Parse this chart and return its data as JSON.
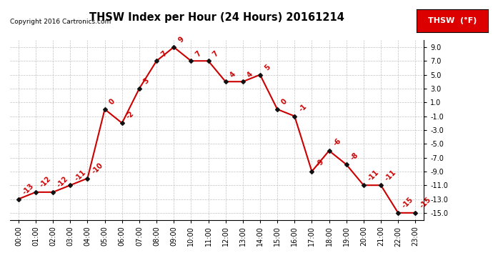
{
  "title": "THSW Index per Hour (24 Hours) 20161214",
  "copyright": "Copyright 2016 Cartronics.com",
  "legend_label": "THSW  (°F)",
  "x_labels": [
    "00:00",
    "01:00",
    "02:00",
    "03:00",
    "04:00",
    "05:00",
    "06:00",
    "07:00",
    "08:00",
    "09:00",
    "10:00",
    "11:00",
    "12:00",
    "13:00",
    "14:00",
    "15:00",
    "16:00",
    "17:00",
    "18:00",
    "19:00",
    "20:00",
    "21:00",
    "22:00",
    "23:00"
  ],
  "values": [
    -13,
    -12,
    -12,
    -11,
    -10,
    0,
    -2,
    3,
    7,
    9,
    7,
    7,
    4,
    4,
    5,
    0,
    -1,
    -9,
    -6,
    -8,
    -11,
    -11,
    -15,
    -15
  ],
  "ylim": [
    -16.0,
    10.0
  ],
  "yticks": [
    -15.0,
    -13.0,
    -11.0,
    -9.0,
    -7.0,
    -5.0,
    -3.0,
    -1.0,
    1.0,
    3.0,
    5.0,
    7.0,
    9.0
  ],
  "line_color": "#cc0000",
  "marker_color": "#111111",
  "label_color": "#cc0000",
  "bg_color": "#ffffff",
  "grid_color": "#bbbbbb",
  "title_color": "#000000",
  "copyright_color": "#000000",
  "legend_bg": "#dd0000",
  "legend_text_color": "#ffffff",
  "title_fontsize": 10.5,
  "copyright_fontsize": 6.5,
  "tick_fontsize": 7,
  "label_fontsize": 7
}
